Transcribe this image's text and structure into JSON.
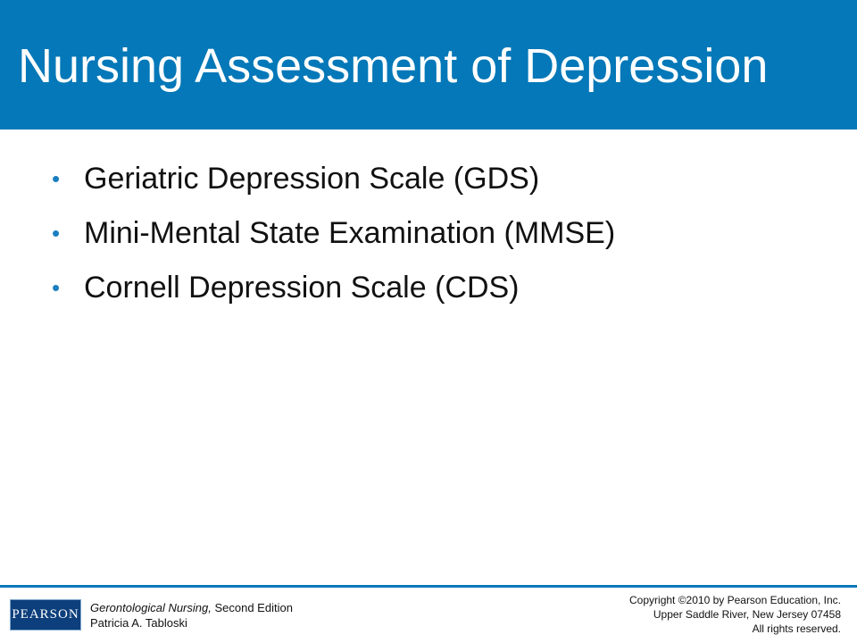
{
  "slide": {
    "title": "Nursing Assessment of Depression",
    "bullets": [
      "Geriatric Depression Scale (GDS)",
      "Mini-Mental State Examination (MMSE)",
      "Cornell Depression Scale (CDS)"
    ],
    "bullet_glyph": "•"
  },
  "footer": {
    "logo_text": "PEARSON",
    "book_title": "Gerontological Nursing,",
    "book_edition": " Second Edition",
    "author": "Patricia A. Tabloski",
    "copyright_lines": [
      "Copyright ©2010 by Pearson Education, Inc.",
      "Upper Saddle River, New Jersey 07458",
      "All rights reserved."
    ]
  },
  "colors": {
    "title_bar": "#0478b8",
    "bullet": "#1a7fc0",
    "logo_bg": "#0d3f7c"
  }
}
